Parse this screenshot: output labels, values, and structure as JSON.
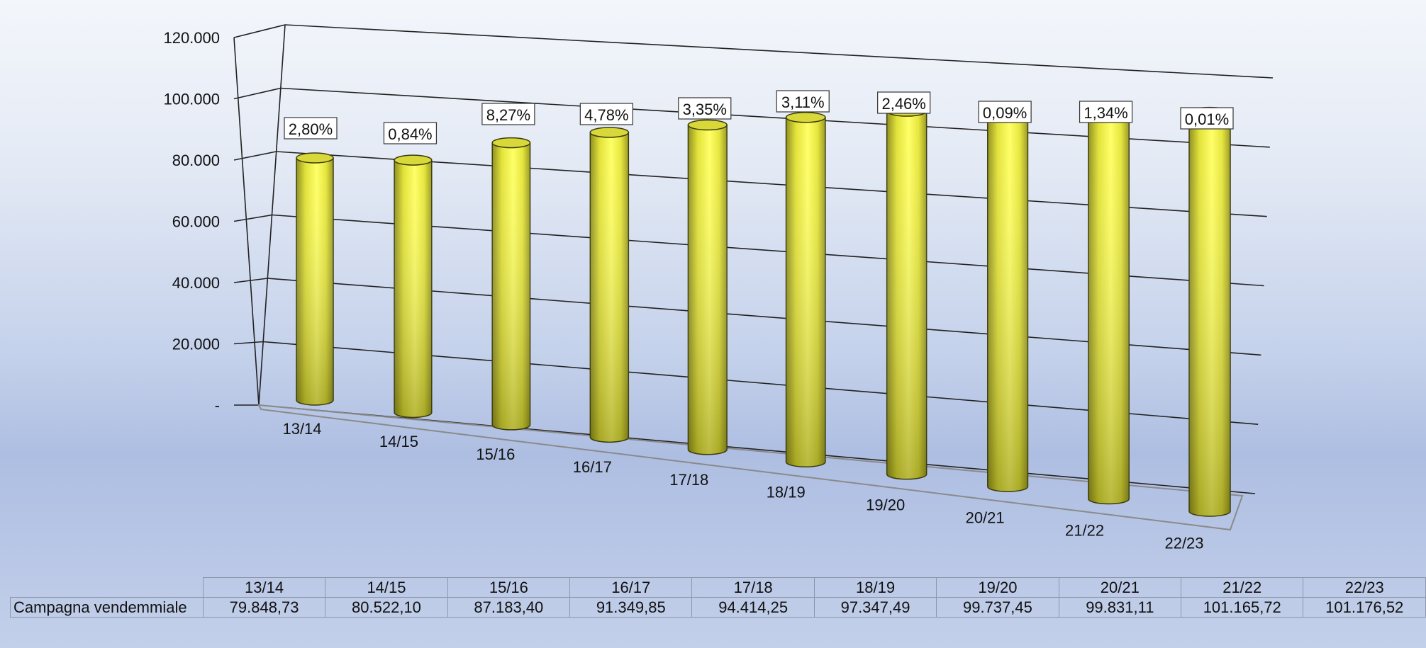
{
  "chart_data": {
    "type": "bar",
    "style": "3d-cylinder",
    "categories": [
      "13/14",
      "14/15",
      "15/16",
      "16/17",
      "17/18",
      "18/19",
      "19/20",
      "20/21",
      "21/22",
      "22/23"
    ],
    "series": [
      {
        "name": "Campagna vendemmiale",
        "values": [
          79848.73,
          80522.1,
          87183.4,
          91349.85,
          94414.25,
          97347.49,
          99737.45,
          99831.11,
          101165.72,
          101176.52
        ],
        "value_labels": [
          "79.848,73",
          "80.522,10",
          "87.183,40",
          "91.349,85",
          "94.414,25",
          "97.347,49",
          "99.737,45",
          "99.831,11",
          "101.165,72",
          "101.176,52"
        ],
        "color": "#f2f244"
      }
    ],
    "data_labels": [
      "2,80%",
      "0,84%",
      "8,27%",
      "4,78%",
      "3,35%",
      "3,11%",
      "2,46%",
      "0,09%",
      "1,34%",
      "0,01%"
    ],
    "y_ticks": [
      "-",
      "20.000",
      "40.000",
      "60.000",
      "80.000",
      "100.000",
      "120.000"
    ],
    "ylim": [
      0,
      120000
    ],
    "grid": true,
    "data_table": {
      "row_label": "Campagna vendemmiale",
      "headers": [
        "13/14",
        "14/15",
        "15/16",
        "16/17",
        "17/18",
        "18/19",
        "19/20",
        "20/21",
        "21/22",
        "22/23"
      ],
      "values": [
        "79.848,73",
        "80.522,10",
        "87.183,40",
        "91.349,85",
        "94.414,25",
        "97.347,49",
        "99.737,45",
        "99.831,11",
        "101.165,72",
        "101.176,52"
      ]
    }
  }
}
